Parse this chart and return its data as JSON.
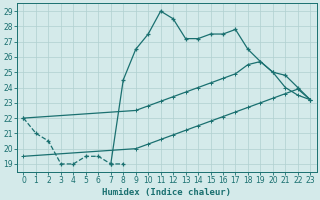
{
  "title": "",
  "xlabel": "Humidex (Indice chaleur)",
  "bg_color": "#d4eaea",
  "grid_color": "#b0d0d0",
  "line_color": "#1a7070",
  "xlim": [
    -0.5,
    23.5
  ],
  "ylim": [
    18.5,
    29.5
  ],
  "xticks": [
    0,
    1,
    2,
    3,
    4,
    5,
    6,
    7,
    8,
    9,
    10,
    11,
    12,
    13,
    14,
    15,
    16,
    17,
    18,
    19,
    20,
    21,
    22,
    23
  ],
  "yticks": [
    19,
    20,
    21,
    22,
    23,
    24,
    25,
    26,
    27,
    28,
    29
  ],
  "line1": [
    [
      0,
      22.0
    ],
    [
      1,
      21.0
    ],
    [
      2,
      20.5
    ],
    [
      3,
      19.0
    ],
    [
      4,
      19.0
    ],
    [
      5,
      19.5
    ],
    [
      6,
      19.5
    ],
    [
      7,
      19.0
    ],
    [
      8,
      19.0
    ]
  ],
  "line2": [
    [
      7,
      19.0
    ],
    [
      8,
      24.5
    ],
    [
      9,
      26.5
    ],
    [
      10,
      27.5
    ],
    [
      11,
      29.0
    ],
    [
      12,
      28.5
    ],
    [
      13,
      27.2
    ],
    [
      14,
      27.2
    ],
    [
      15,
      27.5
    ],
    [
      16,
      27.5
    ],
    [
      17,
      27.8
    ],
    [
      18,
      26.5
    ],
    [
      19,
      25.7
    ],
    [
      20,
      25.0
    ],
    [
      21,
      24.8
    ],
    [
      22,
      24.0
    ],
    [
      23,
      23.2
    ]
  ],
  "line3_lower": [
    [
      0,
      19.5
    ],
    [
      9,
      20.0
    ],
    [
      10,
      20.3
    ],
    [
      11,
      20.6
    ],
    [
      12,
      20.9
    ],
    [
      13,
      21.2
    ],
    [
      14,
      21.5
    ],
    [
      15,
      21.8
    ],
    [
      16,
      22.1
    ],
    [
      17,
      22.4
    ],
    [
      18,
      22.7
    ],
    [
      19,
      23.0
    ],
    [
      20,
      23.3
    ],
    [
      21,
      23.6
    ],
    [
      22,
      23.9
    ],
    [
      23,
      23.2
    ]
  ],
  "line3_upper": [
    [
      0,
      22.0
    ],
    [
      9,
      22.5
    ],
    [
      10,
      22.8
    ],
    [
      11,
      23.1
    ],
    [
      12,
      23.4
    ],
    [
      13,
      23.7
    ],
    [
      14,
      24.0
    ],
    [
      15,
      24.3
    ],
    [
      16,
      24.6
    ],
    [
      17,
      24.9
    ],
    [
      18,
      25.5
    ],
    [
      19,
      25.7
    ],
    [
      20,
      25.0
    ],
    [
      21,
      24.0
    ],
    [
      22,
      23.5
    ],
    [
      23,
      23.2
    ]
  ]
}
